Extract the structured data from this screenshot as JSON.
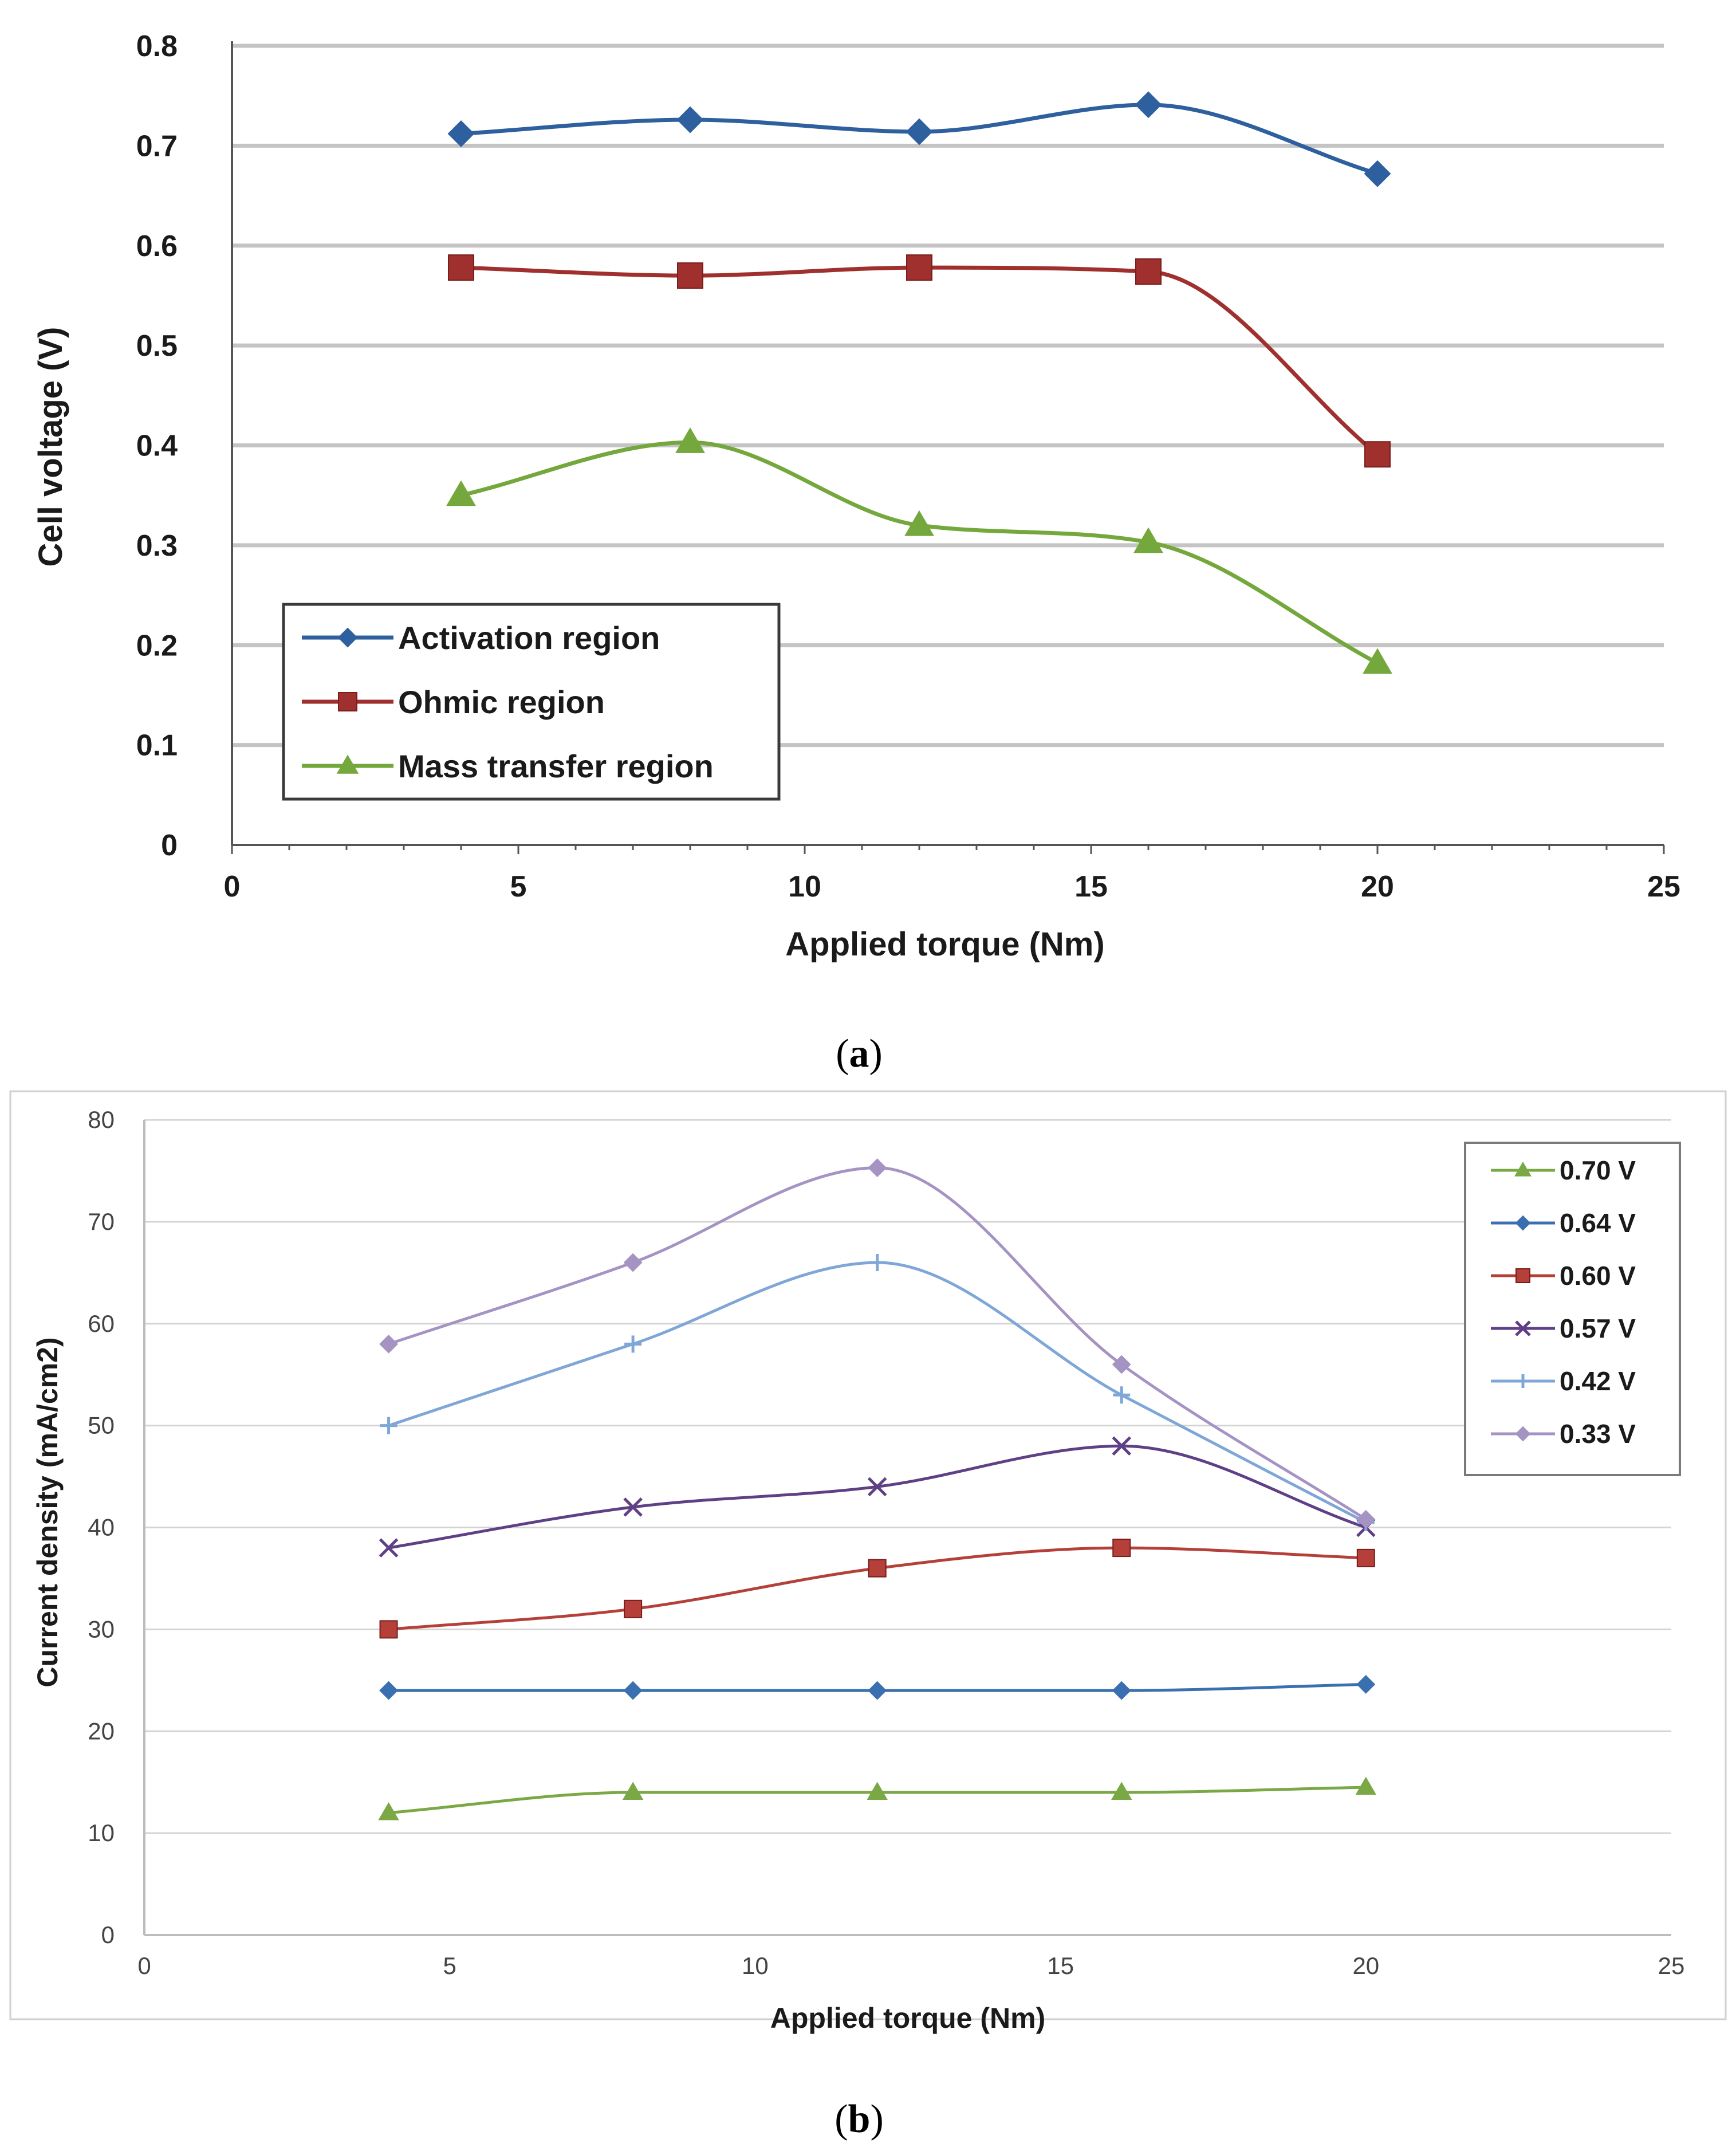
{
  "chart_data": [
    {
      "type": "line",
      "caption": "a",
      "xlabel": "Applied torque (Nm)",
      "ylabel": "Cell voltage (V)",
      "xlim": [
        0,
        25
      ],
      "ylim": [
        0,
        0.8
      ],
      "xticks": [
        "0",
        "5",
        "10",
        "15",
        "20",
        "25"
      ],
      "yticks": [
        "0",
        "0.1",
        "0.2",
        "0.3",
        "0.4",
        "0.5",
        "0.6",
        "0.7",
        "0.8"
      ],
      "grid": "horizontal",
      "legend_position": "bottom-left",
      "x": [
        4,
        8,
        12,
        16,
        20
      ],
      "series": [
        {
          "name": "Activation region",
          "marker": "diamond",
          "color": "#2e5f9e",
          "values": [
            0.712,
            0.726,
            0.714,
            0.741,
            0.672
          ]
        },
        {
          "name": "Ohmic region",
          "marker": "square",
          "color": "#a0302e",
          "values": [
            0.578,
            0.57,
            0.578,
            0.574,
            0.391
          ]
        },
        {
          "name": "Mass transfer region",
          "marker": "triangle",
          "color": "#74a83c",
          "values": [
            0.35,
            0.403,
            0.32,
            0.303,
            0.182
          ]
        }
      ]
    },
    {
      "type": "line",
      "caption": "b",
      "xlabel": "Applied torque (Nm)",
      "ylabel": "Current density (mA/cm2)",
      "xlim": [
        0,
        25
      ],
      "ylim": [
        0,
        80
      ],
      "xticks": [
        "0",
        "5",
        "10",
        "15",
        "20",
        "25"
      ],
      "yticks": [
        "0",
        "10",
        "20",
        "30",
        "40",
        "50",
        "60",
        "70",
        "80"
      ],
      "grid": "horizontal",
      "legend_position": "top-right",
      "x": [
        4,
        8,
        12,
        16,
        20
      ],
      "series": [
        {
          "name": "0.70 V",
          "marker": "triangle",
          "color": "#7aa845",
          "values": [
            12,
            14,
            14,
            14,
            14.5
          ]
        },
        {
          "name": "0.64 V",
          "marker": "diamond",
          "color": "#3a6fb0",
          "values": [
            24,
            24,
            24,
            24,
            24.6
          ]
        },
        {
          "name": "0.60 V",
          "marker": "square",
          "color": "#b5403a",
          "values": [
            30,
            32,
            36,
            38,
            37
          ]
        },
        {
          "name": "0.57 V",
          "marker": "x",
          "color": "#5f3f86",
          "values": [
            38,
            42,
            44,
            48,
            40
          ]
        },
        {
          "name": "0.42 V",
          "marker": "plus",
          "color": "#7ea6d6",
          "values": [
            50,
            58,
            66,
            53,
            40.5
          ]
        },
        {
          "name": "0.33 V",
          "marker": "diamond",
          "color": "#a593c3",
          "values": [
            58,
            66,
            75.3,
            56,
            40.8
          ]
        }
      ]
    }
  ]
}
